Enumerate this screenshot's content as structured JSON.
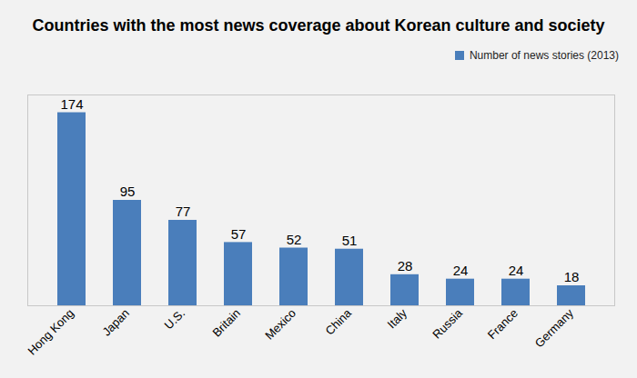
{
  "chart_data": {
    "type": "bar",
    "title": "Countries with the most news coverage about Korean culture and society",
    "categories": [
      "Hong Kong",
      "Japan",
      "U.S.",
      "Britain",
      "Mexico",
      "China",
      "Italy",
      "Russia",
      "France",
      "Germany"
    ],
    "series": [
      {
        "name": "Number of news stories (2013)",
        "color": "#4a7ebb",
        "values": [
          174,
          95,
          77,
          57,
          52,
          51,
          28,
          24,
          24,
          18
        ]
      }
    ],
    "ylim": [
      0,
      190
    ],
    "yticks": [],
    "data_labels": true,
    "tick_labels": "x",
    "grid": false,
    "legend": "top-right"
  }
}
